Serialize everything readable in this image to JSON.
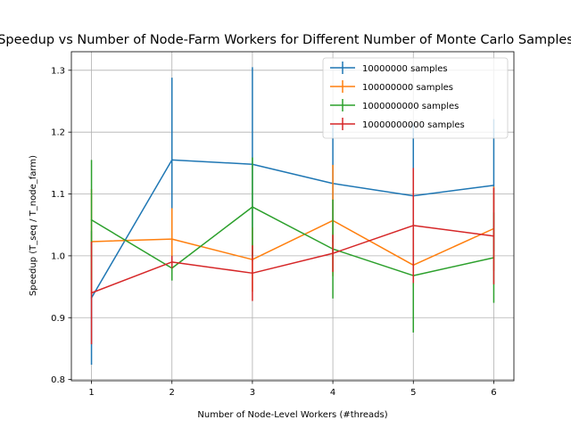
{
  "chart_data": {
    "type": "line",
    "title": "Speedup vs Number of Node-Farm Workers for Different Number of Monte Carlo Samples",
    "xlabel": "Number of Node-Level Workers (#threads)",
    "ylabel": "Speedup  (T_seq / T_node_farm)",
    "x": [
      1,
      2,
      3,
      4,
      5,
      6
    ],
    "xticks": [
      "1",
      "2",
      "3",
      "4",
      "5",
      "6"
    ],
    "yticks": [
      "0.8",
      "0.9",
      "1.0",
      "1.1",
      "1.2",
      "1.3"
    ],
    "xlim": [
      0.75,
      6.25
    ],
    "ylim": [
      0.798,
      1.33
    ],
    "grid": true,
    "legend_position": "top-right",
    "series": [
      {
        "name": "10000000 samples",
        "color": "#1f77b4",
        "values": [
          0.932,
          1.155,
          1.148,
          1.117,
          1.097,
          1.114
        ],
        "errors": [
          0.108,
          0.133,
          0.157,
          0.095,
          0.115,
          0.107
        ]
      },
      {
        "name": "100000000 samples",
        "color": "#ff7f0e",
        "values": [
          1.023,
          1.027,
          0.994,
          1.057,
          0.985,
          1.044
        ],
        "errors": [
          0.085,
          0.05,
          0.052,
          0.09,
          0.035,
          0.068
        ]
      },
      {
        "name": "1000000000 samples",
        "color": "#2ca02c",
        "values": [
          1.058,
          0.98,
          1.079,
          1.011,
          0.968,
          0.997
        ],
        "errors": [
          0.097,
          0.02,
          0.08,
          0.08,
          0.092,
          0.073
        ]
      },
      {
        "name": "10000000000 samples",
        "color": "#d62728",
        "values": [
          0.94,
          0.99,
          0.972,
          1.004,
          1.049,
          1.032
        ],
        "errors": [
          0.083,
          0.01,
          0.045,
          0.03,
          0.093,
          0.078
        ]
      }
    ]
  }
}
